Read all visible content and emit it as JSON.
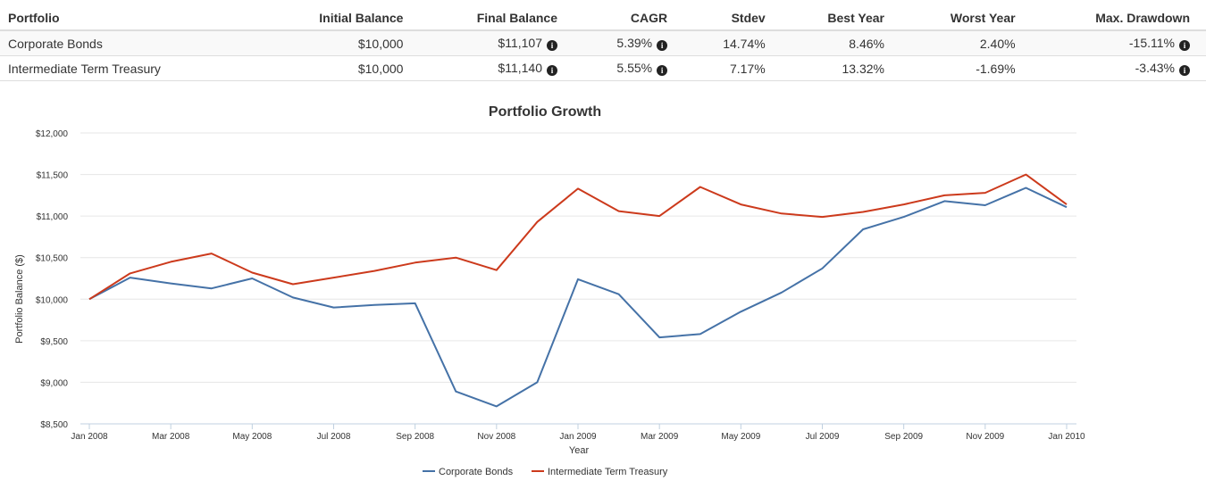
{
  "table": {
    "headers": [
      "Portfolio",
      "Initial Balance",
      "Final Balance",
      "CAGR",
      "Stdev",
      "Best Year",
      "Worst Year",
      "Max. Drawdown"
    ],
    "rows": [
      {
        "portfolio": "Corporate Bonds",
        "initial": "$10,000",
        "final": "$11,107",
        "cagr": "5.39%",
        "stdev": "14.74%",
        "best": "8.46%",
        "worst": "2.40%",
        "maxdd": "-15.11%"
      },
      {
        "portfolio": "Intermediate Term Treasury",
        "initial": "$10,000",
        "final": "$11,140",
        "cagr": "5.55%",
        "stdev": "7.17%",
        "best": "13.32%",
        "worst": "-1.69%",
        "maxdd": "-3.43%"
      }
    ],
    "info_icon": "info-circle-icon"
  },
  "chart_data": {
    "type": "line",
    "title": "Portfolio Growth",
    "xlabel": "Year",
    "ylabel": "Portfolio Balance ($)",
    "x": [
      "Jan 2008",
      "Feb 2008",
      "Mar 2008",
      "Apr 2008",
      "May 2008",
      "Jun 2008",
      "Jul 2008",
      "Aug 2008",
      "Sep 2008",
      "Oct 2008",
      "Nov 2008",
      "Dec 2008",
      "Jan 2009",
      "Feb 2009",
      "Mar 2009",
      "Apr 2009",
      "May 2009",
      "Jun 2009",
      "Jul 2009",
      "Aug 2009",
      "Sep 2009",
      "Oct 2009",
      "Nov 2009",
      "Dec 2009",
      "Jan 2010"
    ],
    "x_tick_labels": [
      "Jan 2008",
      "Mar 2008",
      "May 2008",
      "Jul 2008",
      "Sep 2008",
      "Nov 2008",
      "Jan 2009",
      "Mar 2009",
      "May 2009",
      "Jul 2009",
      "Sep 2009",
      "Nov 2009",
      "Jan 2010"
    ],
    "ylim": [
      8500,
      12000
    ],
    "y_ticks": [
      8500,
      9000,
      9500,
      10000,
      10500,
      11000,
      11500,
      12000
    ],
    "y_tick_labels": [
      "$8,500",
      "$9,000",
      "$9,500",
      "$10,000",
      "$10,500",
      "$11,000",
      "$11,500",
      "$12,000"
    ],
    "grid": true,
    "legend_position": "bottom-center",
    "series": [
      {
        "name": "Corporate Bonds",
        "color": "#4572a7",
        "values": [
          10000,
          10260,
          10190,
          10130,
          10250,
          10020,
          9900,
          9930,
          9950,
          8890,
          8710,
          9000,
          10240,
          10060,
          9540,
          9580,
          9850,
          10080,
          10370,
          10840,
          10990,
          11180,
          11130,
          11340,
          11107
        ]
      },
      {
        "name": "Intermediate Term Treasury",
        "color": "#cc3a1c",
        "values": [
          10000,
          10310,
          10450,
          10550,
          10320,
          10180,
          10260,
          10340,
          10440,
          10500,
          10350,
          10930,
          11330,
          11060,
          11000,
          11350,
          11140,
          11030,
          10990,
          11050,
          11140,
          11250,
          11280,
          11500,
          11140
        ]
      }
    ]
  }
}
